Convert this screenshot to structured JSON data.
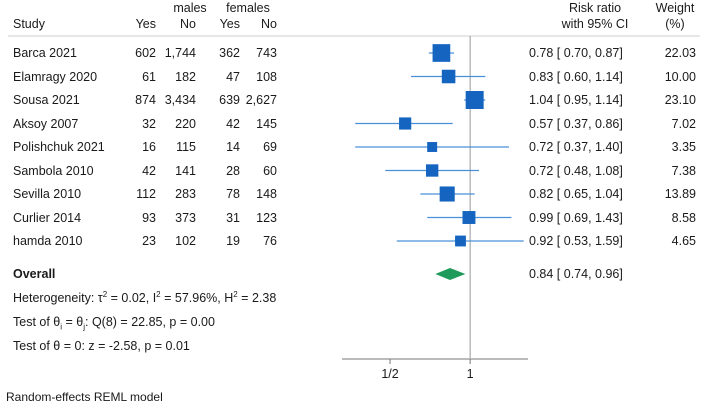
{
  "chart_data": {
    "type": "forest",
    "title": "",
    "columns": {
      "study": "Study",
      "group1": "males",
      "group2": "females",
      "yes": "Yes",
      "no": "No",
      "rr_line1": "Risk ratio",
      "rr_line2": "with 95% CI",
      "weight_line1": "Weight",
      "weight_line2": "(%)"
    },
    "studies": [
      {
        "name": "Barca 2021",
        "m_yes": "602",
        "m_no": "1,744",
        "f_yes": "362",
        "f_no": "743",
        "rr": 0.78,
        "lo": 0.7,
        "hi": 0.87,
        "ci_text": "0.78 [ 0.70, 0.87]",
        "weight": 22.03,
        "weight_text": "22.03"
      },
      {
        "name": "Elamragy 2020",
        "m_yes": "61",
        "m_no": "182",
        "f_yes": "47",
        "f_no": "108",
        "rr": 0.83,
        "lo": 0.6,
        "hi": 1.14,
        "ci_text": "0.83 [ 0.60, 1.14]",
        "weight": 10.0,
        "weight_text": "10.00"
      },
      {
        "name": "Sousa 2021",
        "m_yes": "874",
        "m_no": "3,434",
        "f_yes": "639",
        "f_no": "2,627",
        "rr": 1.04,
        "lo": 0.95,
        "hi": 1.14,
        "ci_text": "1.04 [ 0.95, 1.14]",
        "weight": 23.1,
        "weight_text": "23.10"
      },
      {
        "name": "Aksoy 2007",
        "m_yes": "32",
        "m_no": "220",
        "f_yes": "42",
        "f_no": "145",
        "rr": 0.57,
        "lo": 0.37,
        "hi": 0.86,
        "ci_text": "0.57 [ 0.37, 0.86]",
        "weight": 7.02,
        "weight_text": "7.02"
      },
      {
        "name": "Polishchuk 2021",
        "m_yes": "16",
        "m_no": "115",
        "f_yes": "14",
        "f_no": "69",
        "rr": 0.72,
        "lo": 0.37,
        "hi": 1.4,
        "ci_text": "0.72 [ 0.37, 1.40]",
        "weight": 3.35,
        "weight_text": "3.35"
      },
      {
        "name": "Sambola 2010",
        "m_yes": "42",
        "m_no": "141",
        "f_yes": "28",
        "f_no": "60",
        "rr": 0.72,
        "lo": 0.48,
        "hi": 1.08,
        "ci_text": "0.72 [ 0.48, 1.08]",
        "weight": 7.38,
        "weight_text": "7.38"
      },
      {
        "name": "Sevilla 2010",
        "m_yes": "112",
        "m_no": "283",
        "f_yes": "78",
        "f_no": "148",
        "rr": 0.82,
        "lo": 0.65,
        "hi": 1.04,
        "ci_text": "0.82 [ 0.65, 1.04]",
        "weight": 13.89,
        "weight_text": "13.89"
      },
      {
        "name": "Curlier 2014",
        "m_yes": "93",
        "m_no": "373",
        "f_yes": "31",
        "f_no": "123",
        "rr": 0.99,
        "lo": 0.69,
        "hi": 1.43,
        "ci_text": "0.99 [ 0.69, 1.43]",
        "weight": 8.58,
        "weight_text": "8.58"
      },
      {
        "name": "hamda 2010",
        "m_yes": "23",
        "m_no": "102",
        "f_yes": "19",
        "f_no": "76",
        "rr": 0.92,
        "lo": 0.53,
        "hi": 1.59,
        "ci_text": "0.92 [ 0.53, 1.59]",
        "weight": 4.65,
        "weight_text": "4.65"
      }
    ],
    "overall": {
      "label": "Overall",
      "rr": 0.84,
      "lo": 0.74,
      "hi": 0.96,
      "ci_text": "0.84 [ 0.74, 0.96]"
    },
    "stats": {
      "heterogeneity_prefix": "Heterogeneity: τ",
      "tau_sup": "2",
      "tau_val": " = 0.02, I",
      "i_sup": "2",
      "i_val": " = 57.96%, H",
      "h_sup": "2",
      "h_val": " = 2.38",
      "homog_prefix": "Test of θ",
      "homog_sub_i": "i",
      "homog_mid": " = θ",
      "homog_sub_j": "j",
      "homog_rest": ": Q(8) = 22.85, p = 0.00",
      "effect_test": "Test of θ = 0: z = -2.58, p = 0.01"
    },
    "x_axis": {
      "scale": "log",
      "ticks": [
        {
          "value": 0.5,
          "label": "1/2"
        },
        {
          "value": 1,
          "label": "1"
        }
      ],
      "null_line": 1
    },
    "footnote": "Random-effects REML model",
    "colors": {
      "marker": "#1565c0",
      "ci_line": "#4a90d9",
      "diamond": "#1e9a5a",
      "axis": "#777777",
      "ref_line": "#999999"
    }
  }
}
